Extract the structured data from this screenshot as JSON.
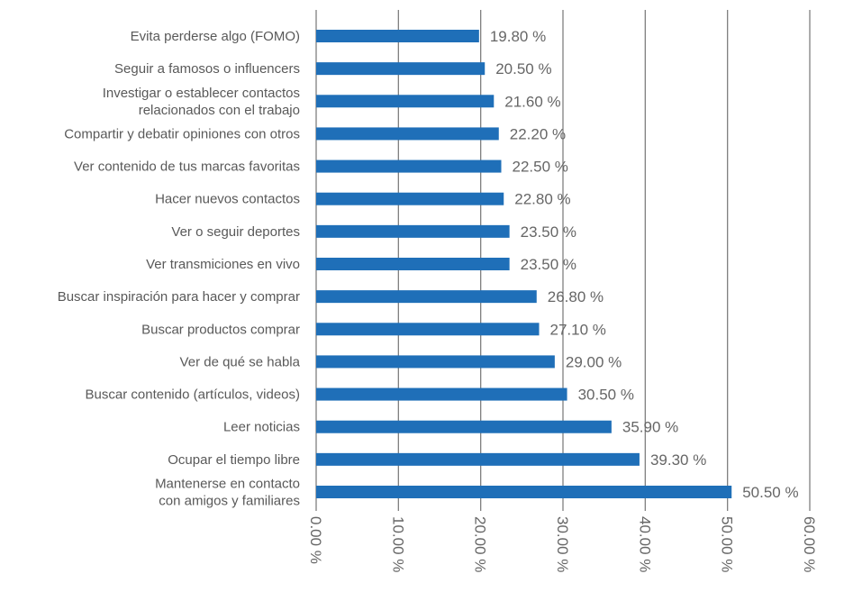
{
  "chart_data": {
    "type": "bar",
    "orientation": "horizontal",
    "categories": [
      "Evita perderse algo (FOMO)",
      "Seguir a famosos o influencers",
      "Investigar o establecer contactos relacionados con el trabajo",
      "Compartir y debatir opiniones con otros",
      "Ver contenido de tus marcas favoritas",
      "Hacer nuevos contactos",
      "Ver o seguir deportes",
      "Ver transmiciones en vivo",
      "Buscar inspiración para hacer y comprar",
      "Buscar productos comprar",
      "Ver de qué se habla",
      "Buscar contenido (artículos, videos)",
      "Leer noticias",
      "Ocupar el tiempo libre",
      "Mantenerse en contacto con amigos y familiares"
    ],
    "category_lines": [
      [
        "Evita perderse algo (FOMO)"
      ],
      [
        "Seguir a famosos o influencers"
      ],
      [
        "Investigar o establecer contactos",
        "relacionados con el trabajo"
      ],
      [
        "Compartir y debatir opiniones con otros"
      ],
      [
        "Ver contenido de tus marcas favoritas"
      ],
      [
        "Hacer nuevos contactos"
      ],
      [
        "Ver o seguir deportes"
      ],
      [
        "Ver transmiciones en vivo"
      ],
      [
        "Buscar inspiración para hacer y comprar"
      ],
      [
        "Buscar productos comprar"
      ],
      [
        "Ver de qué se habla"
      ],
      [
        "Buscar contenido (artículos, videos)"
      ],
      [
        "Leer noticias"
      ],
      [
        "Ocupar el tiempo libre"
      ],
      [
        "Mantenerse en contacto",
        "con amigos y familiares"
      ]
    ],
    "values": [
      19.8,
      20.5,
      21.6,
      22.2,
      22.5,
      22.8,
      23.5,
      23.5,
      26.8,
      27.1,
      29.0,
      30.5,
      35.9,
      39.3,
      50.5
    ],
    "data_labels": [
      "19.80 %",
      "20.50 %",
      "21.60 %",
      "22.20 %",
      "22.50 %",
      "22.80 %",
      "23.50 %",
      "23.50 %",
      "26.80 %",
      "27.10 %",
      "29.00 %",
      "30.50 %",
      "35.90 %",
      "39.30 %",
      "50.50 %"
    ],
    "xlim": [
      0,
      60
    ],
    "xticks": [
      0,
      10,
      20,
      30,
      40,
      50,
      60
    ],
    "xtick_labels": [
      "0.00 %",
      "10.00 %",
      "20.00 %",
      "30.00 %",
      "40.00 %",
      "50.00 %",
      "60.00 %"
    ],
    "grid": "vertical",
    "legend": "none",
    "bar_color": "#1f6fb8",
    "grid_color": "#7f7f7f",
    "title": "",
    "xlabel": "",
    "ylabel": ""
  }
}
